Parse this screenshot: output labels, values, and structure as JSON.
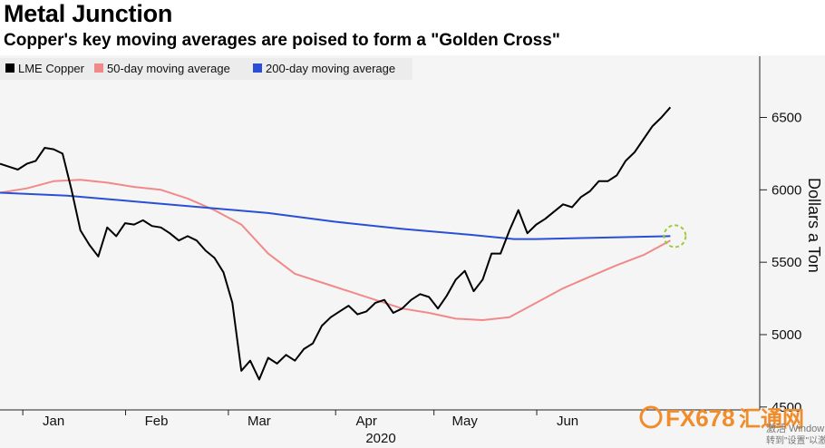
{
  "title": "Metal Junction",
  "subtitle": "Copper's key moving averages are poised to form a \"Golden Cross\"",
  "colors": {
    "lme": "#000000",
    "ma50": "#f08a8a",
    "ma200": "#2a4fd6",
    "golden_cross_marker": "#9ccc3c",
    "watermark": "#f08c2a"
  },
  "watermark": {
    "brand": "FX678",
    "cn": "汇通网",
    "overlay_1": "激活 Window",
    "overlay_2": "转到\"设置\"以激活"
  },
  "chart_data": {
    "type": "line",
    "title": "Metal Junction",
    "subtitle": "Copper's key moving averages are poised to form a \"Golden Cross\"",
    "ylabel": "Dollars a Ton",
    "xlabel": "2020",
    "ylim": [
      4480,
      6760
    ],
    "yticks": [
      4500,
      5000,
      5500,
      6000,
      6500
    ],
    "xlim": [
      0,
      170
    ],
    "xticks": [
      {
        "x": 12,
        "label": "Jan"
      },
      {
        "x": 35,
        "label": "Feb"
      },
      {
        "x": 58,
        "label": "Mar"
      },
      {
        "x": 82,
        "label": "Apr"
      },
      {
        "x": 104,
        "label": "May"
      },
      {
        "x": 127,
        "label": "Jun"
      }
    ],
    "legend_position": "top-left",
    "annotations": [
      {
        "type": "dashed-circle",
        "x": 151,
        "y": 5680,
        "label": "Golden Cross point"
      }
    ],
    "series": [
      {
        "name": "LME Copper",
        "x": [
          0,
          2,
          4,
          6,
          8,
          10,
          12,
          14,
          16,
          18,
          20,
          22,
          24,
          26,
          28,
          30,
          32,
          34,
          36,
          38,
          40,
          42,
          44,
          46,
          48,
          50,
          52,
          54,
          56,
          58,
          60,
          62,
          64,
          66,
          68,
          70,
          72,
          74,
          76,
          78,
          80,
          82,
          84,
          86,
          88,
          90,
          92,
          94,
          96,
          98,
          100,
          102,
          104,
          106,
          108,
          110,
          112,
          114,
          116,
          118,
          120,
          122,
          124,
          126,
          128,
          130,
          132,
          134,
          136,
          138,
          140,
          142,
          144,
          146,
          148,
          150
        ],
        "y": [
          6180,
          6160,
          6140,
          6180,
          6200,
          6290,
          6280,
          6250,
          6000,
          5720,
          5620,
          5540,
          5740,
          5680,
          5770,
          5760,
          5790,
          5750,
          5740,
          5700,
          5650,
          5680,
          5650,
          5580,
          5530,
          5430,
          5220,
          4750,
          4820,
          4690,
          4840,
          4800,
          4860,
          4820,
          4900,
          4940,
          5060,
          5120,
          5160,
          5200,
          5140,
          5160,
          5220,
          5240,
          5150,
          5180,
          5240,
          5280,
          5260,
          5180,
          5270,
          5380,
          5440,
          5300,
          5380,
          5560,
          5560,
          5720,
          5860,
          5700,
          5760,
          5800,
          5850,
          5900,
          5880,
          5950,
          5990,
          6060,
          6060,
          6100,
          6200,
          6260,
          6350,
          6440,
          6500,
          6570
        ]
      },
      {
        "name": "50-day moving average",
        "x": [
          0,
          6,
          12,
          18,
          24,
          30,
          36,
          42,
          48,
          54,
          60,
          66,
          72,
          78,
          84,
          90,
          96,
          102,
          108,
          114,
          120,
          126,
          132,
          138,
          144,
          150
        ],
        "y": [
          5980,
          6010,
          6060,
          6070,
          6050,
          6020,
          6000,
          5940,
          5860,
          5760,
          5560,
          5420,
          5360,
          5300,
          5240,
          5180,
          5150,
          5110,
          5100,
          5120,
          5220,
          5320,
          5400,
          5480,
          5550,
          5650
        ]
      },
      {
        "name": "200-day moving average",
        "x": [
          0,
          15,
          30,
          45,
          60,
          75,
          90,
          105,
          115,
          120,
          135,
          150
        ],
        "y": [
          5980,
          5960,
          5920,
          5880,
          5840,
          5780,
          5730,
          5690,
          5660,
          5660,
          5670,
          5680
        ]
      }
    ]
  }
}
